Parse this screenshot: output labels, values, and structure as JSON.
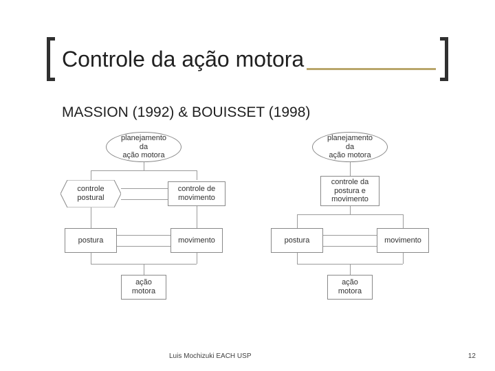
{
  "title": "Controle da ação motora",
  "subtitle": "MASSION (1992) & BOUISSET (1998)",
  "footer": "Luis Mochizuki EACH USP",
  "page_number": "12",
  "colors": {
    "title_rule": "#b8a56a",
    "bracket": "#303030",
    "node_border": "#888888",
    "connector": "#9a9a9a",
    "text": "#202020",
    "background": "#ffffff"
  },
  "diagram_left": {
    "top": {
      "shape": "oval",
      "text": "planejamento\nda\nação motora"
    },
    "mid_left": {
      "shape": "hexagon",
      "text": "controle\npostural"
    },
    "mid_right": {
      "shape": "rect",
      "text": "controle de\nmovimento"
    },
    "low_left": {
      "shape": "rect",
      "text": "postura"
    },
    "low_right": {
      "shape": "rect",
      "text": "movimento"
    },
    "bottom": {
      "shape": "rect",
      "text": "ação\nmotora"
    }
  },
  "diagram_right": {
    "top": {
      "shape": "oval",
      "text": "planejamento\nda\nação motora"
    },
    "mid": {
      "shape": "rect",
      "text": "controle da\npostura e\nmovimento"
    },
    "low_left": {
      "shape": "rect",
      "text": "postura"
    },
    "low_right": {
      "shape": "rect",
      "text": "movimento"
    },
    "bottom": {
      "shape": "rect",
      "text": "ação\nmotora"
    }
  }
}
